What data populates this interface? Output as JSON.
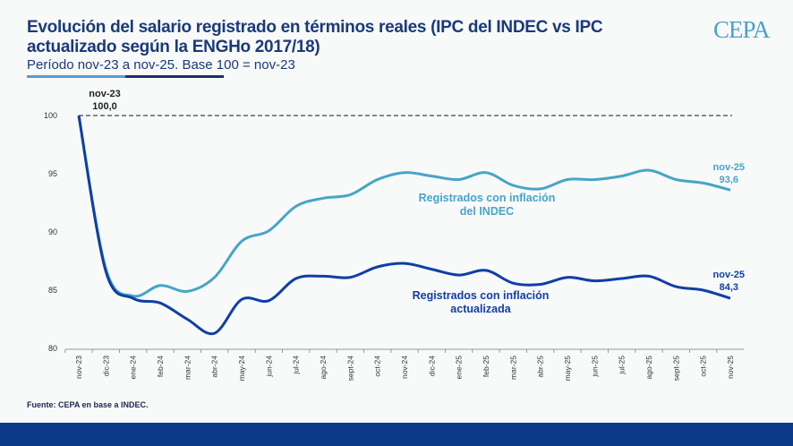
{
  "header": {
    "title": "Evolución del salario registrado en términos reales (IPC del INDEC vs IPC actualizado según la ENGHo 2017/18)",
    "subtitle": "Período nov-23 a nov-25. Base 100 = nov-23",
    "logo": "CEPA"
  },
  "source": "Fuente: CEPA en base a INDEC.",
  "chart_data": {
    "type": "line",
    "title": "Evolución del salario registrado en términos reales (IPC del INDEC vs IPC actualizado según la ENGHo 2017/18)",
    "ylim": [
      80,
      100
    ],
    "yticks": [
      "80",
      "85",
      "90",
      "95",
      "100"
    ],
    "reference_line": 100,
    "categories": [
      "nov-23",
      "dic-23",
      "ene-24",
      "feb-24",
      "mar-24",
      "abr-24",
      "may-24",
      "jun-24",
      "jul-24",
      "ago-24",
      "sept-24",
      "oct-24",
      "nov-24",
      "dic-24",
      "ene-25",
      "feb-25",
      "mar-25",
      "abr-25",
      "may-25",
      "jun-25",
      "jul-25",
      "ago-25",
      "sept-25",
      "oct-25",
      "nov-25"
    ],
    "series": [
      {
        "name": "Registrados con inflación del INDEC",
        "name_line1": "Registrados con inflación",
        "name_line2": "del INDEC",
        "color": "#45a5c8",
        "values": [
          100,
          86.8,
          84.5,
          85.4,
          84.9,
          86.1,
          89.2,
          90.1,
          92.2,
          92.9,
          93.2,
          94.5,
          95.1,
          94.8,
          94.5,
          95.1,
          94.0,
          93.7,
          94.5,
          94.5,
          94.8,
          95.3,
          94.5,
          94.2,
          93.6
        ],
        "end_label_period": "nov-25",
        "end_label_value": "93,6"
      },
      {
        "name": "Registrados con inflación actualizada",
        "name_line1": "Registrados con inflación",
        "name_line2": "actualizada",
        "color": "#0f3fa6",
        "values": [
          100,
          86.6,
          84.3,
          83.9,
          82.5,
          81.3,
          84.2,
          84.1,
          86.0,
          86.2,
          86.1,
          87.0,
          87.3,
          86.8,
          86.3,
          86.7,
          85.6,
          85.5,
          86.1,
          85.8,
          86.0,
          86.2,
          85.3,
          85.0,
          84.3
        ],
        "end_label_period": "nov-25",
        "end_label_value": "84,3"
      }
    ],
    "start_label_period": "nov-23",
    "start_label_value": "100,0"
  }
}
